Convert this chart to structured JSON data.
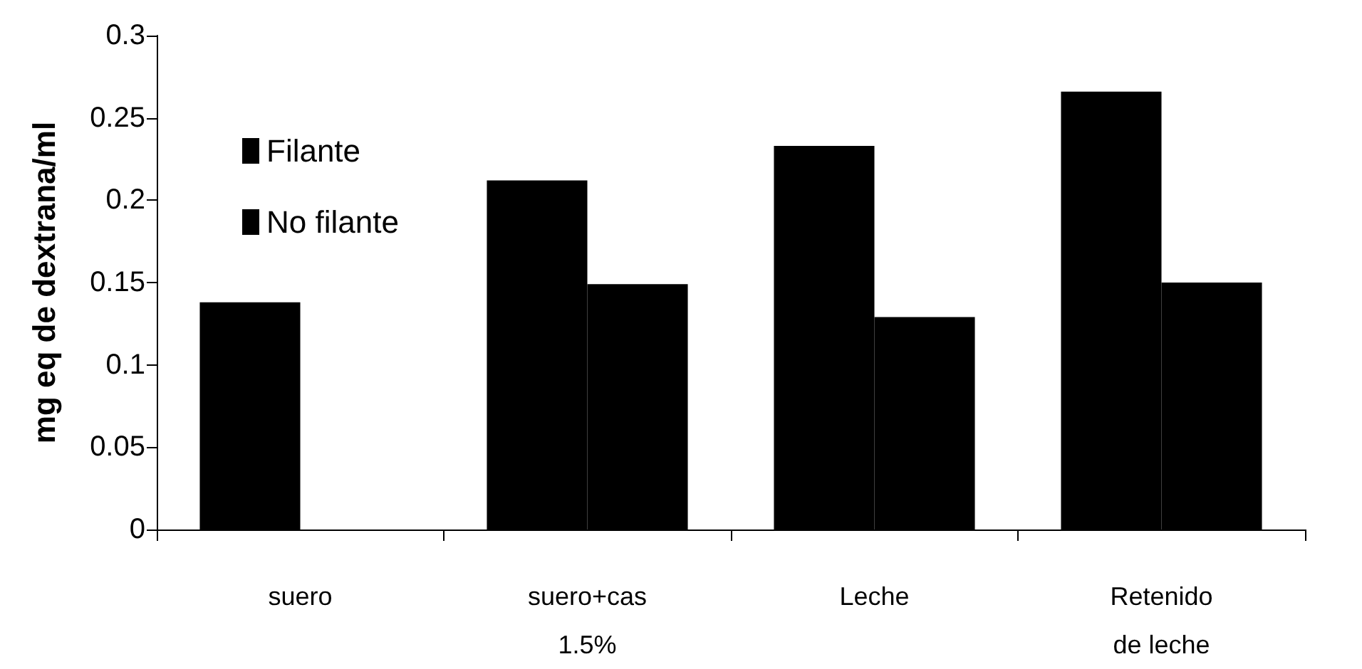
{
  "chart_data": {
    "type": "bar",
    "ylabel": "mg eq de dextrana/ml",
    "categories": [
      "suero",
      "suero+cas\n1.5%",
      "Leche",
      "Retenido\nde leche"
    ],
    "series": [
      {
        "name": "Filante",
        "color": "#000000",
        "values": [
          0.138,
          0.212,
          0.233,
          0.266
        ]
      },
      {
        "name": "No filante",
        "color": "#000000",
        "values": [
          null,
          0.149,
          0.129,
          0.15
        ]
      }
    ],
    "ylim": [
      0,
      0.3
    ],
    "yticks": [
      0,
      0.05,
      0.1,
      0.15,
      0.2,
      0.25,
      0.3
    ],
    "grid": false,
    "legend": "top left"
  }
}
